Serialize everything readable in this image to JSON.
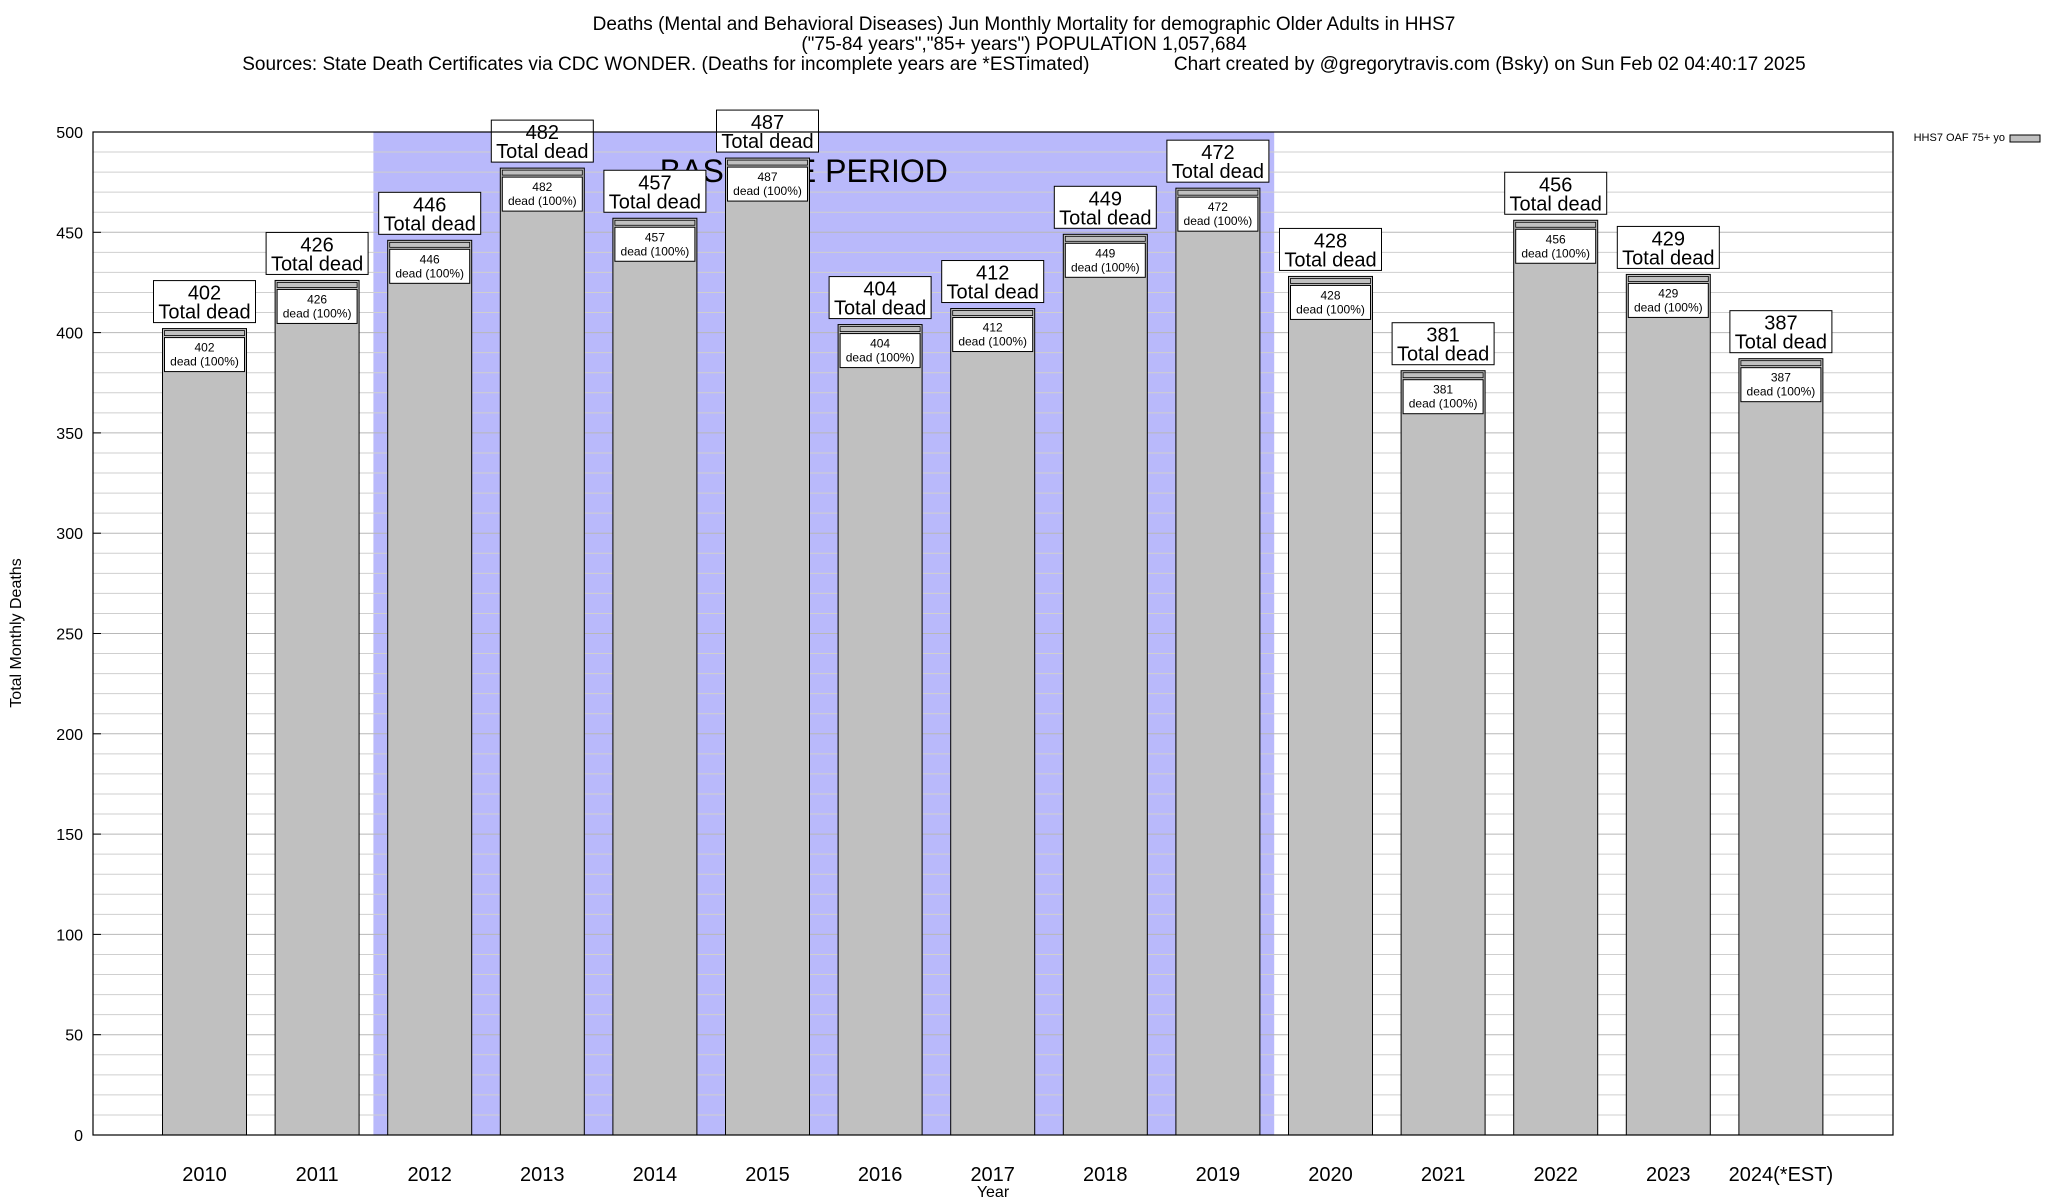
{
  "chart_data": {
    "type": "bar",
    "title": "Deaths (Mental and Behavioral Diseases) Jun Monthly Mortality for demographic Older Adults in HHS7",
    "subtitle": "(\"75-84 years\",\"85+ years\") POPULATION 1,057,684",
    "source_note": "Sources: State Death Certificates via CDC WONDER. (Deaths for incomplete years are *ESTimated)",
    "credit_note": "Chart created by @gregorytravis.com (Bsky) on Sun Feb 02 04:40:17 2025",
    "xlabel": "Year",
    "ylabel": "Total Monthly Deaths",
    "ylim": [
      0,
      500
    ],
    "y_ticks": [
      0,
      50,
      100,
      150,
      200,
      250,
      300,
      350,
      400,
      450,
      500
    ],
    "grid": true,
    "categories": [
      "2010",
      "2011",
      "2012",
      "2013",
      "2014",
      "2015",
      "2016",
      "2017",
      "2018",
      "2019",
      "2020",
      "2021",
      "2022",
      "2023",
      "2024(*EST)"
    ],
    "series": [
      {
        "name": "HHS7 OAF 75+ yo",
        "values": [
          402,
          426,
          446,
          482,
          457,
          487,
          404,
          412,
          449,
          472,
          428,
          381,
          456,
          429,
          387
        ],
        "color": "#c0c0c0"
      }
    ],
    "total_label_text": "Total dead",
    "segment_label_text": "dead (100%)",
    "baseline_period": {
      "label": "BASELINE PERIOD",
      "start_category": "2012",
      "end_category": "2019",
      "color": "#b9b9fb"
    },
    "legend_position": "top-right"
  }
}
